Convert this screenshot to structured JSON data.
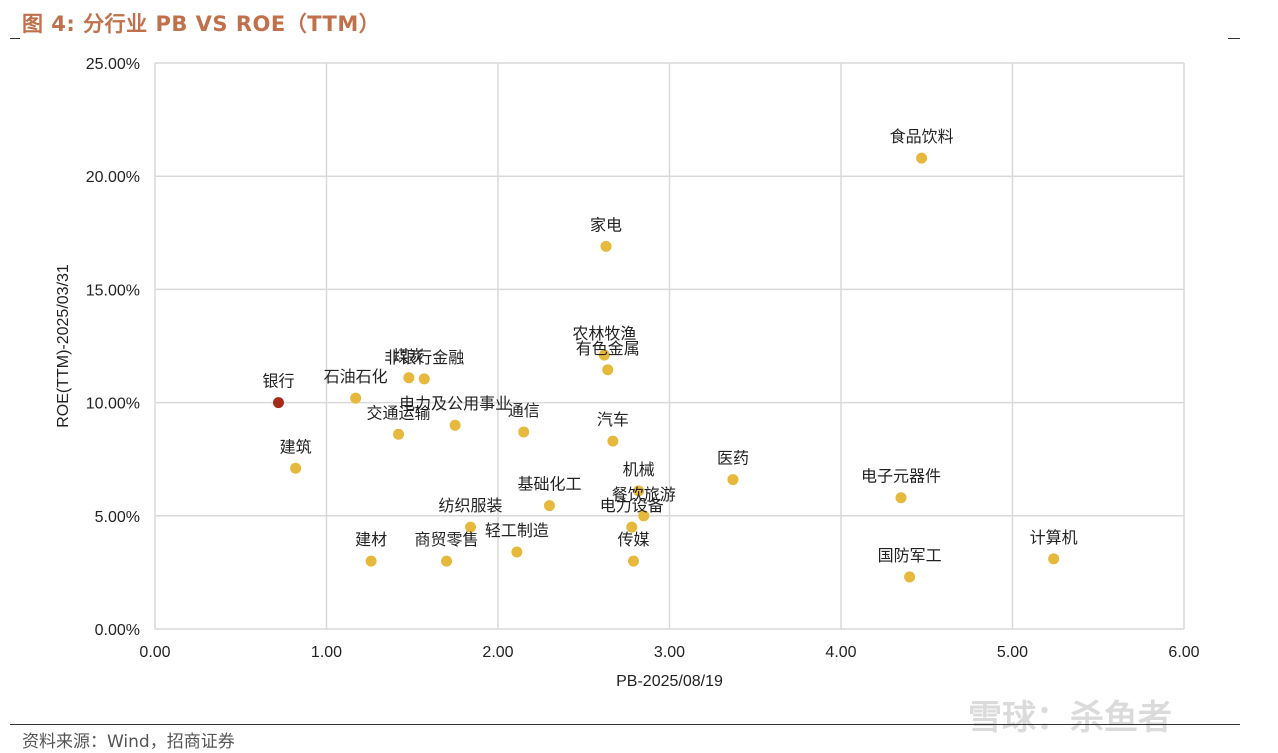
{
  "title": "图  4:  分行业 PB VS ROE（TTM）",
  "source": "资料来源：Wind，招商证券",
  "watermark": "雪球：杀鱼者",
  "colors": {
    "point": "#E6B83B",
    "highlight": "#A52A1A",
    "title": "#C0704A"
  },
  "chart_data": {
    "type": "scatter",
    "xlabel": "PB-2025/08/19",
    "ylabel": "ROE(TTM)-2025/03/31",
    "xlim": [
      0,
      6
    ],
    "ylim": [
      0,
      25
    ],
    "x_ticks": [
      "0.00",
      "1.00",
      "2.00",
      "3.00",
      "4.00",
      "5.00",
      "6.00"
    ],
    "y_ticks": [
      "0.00%",
      "5.00%",
      "10.00%",
      "15.00%",
      "20.00%",
      "25.00%"
    ],
    "grid": true,
    "points": [
      {
        "label": "银行",
        "x": 0.72,
        "y": 10.0,
        "highlight": true
      },
      {
        "label": "建筑",
        "x": 0.82,
        "y": 7.1
      },
      {
        "label": "石油石化",
        "x": 1.17,
        "y": 10.2
      },
      {
        "label": "建材",
        "x": 1.26,
        "y": 3.0
      },
      {
        "label": "交通运输",
        "x": 1.42,
        "y": 8.6
      },
      {
        "label": "煤炭",
        "x": 1.48,
        "y": 11.1
      },
      {
        "label": "非银行金融",
        "x": 1.57,
        "y": 11.05
      },
      {
        "label": "商贸零售",
        "x": 1.7,
        "y": 3.0
      },
      {
        "label": "电力及公用事业",
        "x": 1.75,
        "y": 9.0
      },
      {
        "label": "纺织服装",
        "x": 1.84,
        "y": 4.5
      },
      {
        "label": "轻工制造",
        "x": 2.11,
        "y": 3.4
      },
      {
        "label": "通信",
        "x": 2.15,
        "y": 8.7
      },
      {
        "label": "基础化工",
        "x": 2.3,
        "y": 5.45
      },
      {
        "label": "农林牧渔",
        "x": 2.62,
        "y": 12.1
      },
      {
        "label": "家电",
        "x": 2.63,
        "y": 16.9
      },
      {
        "label": "有色金属",
        "x": 2.64,
        "y": 11.45
      },
      {
        "label": "汽车",
        "x": 2.67,
        "y": 8.3
      },
      {
        "label": "电力设备",
        "x": 2.78,
        "y": 4.5
      },
      {
        "label": "传媒",
        "x": 2.79,
        "y": 3.0
      },
      {
        "label": "机械",
        "x": 2.82,
        "y": 6.1
      },
      {
        "label": "餐饮旅游",
        "x": 2.85,
        "y": 5.0
      },
      {
        "label": "医药",
        "x": 3.37,
        "y": 6.6
      },
      {
        "label": "电子元器件",
        "x": 4.35,
        "y": 5.8
      },
      {
        "label": "国防军工",
        "x": 4.4,
        "y": 2.3
      },
      {
        "label": "食品饮料",
        "x": 4.47,
        "y": 20.8
      },
      {
        "label": "计算机",
        "x": 5.24,
        "y": 3.1
      }
    ]
  }
}
